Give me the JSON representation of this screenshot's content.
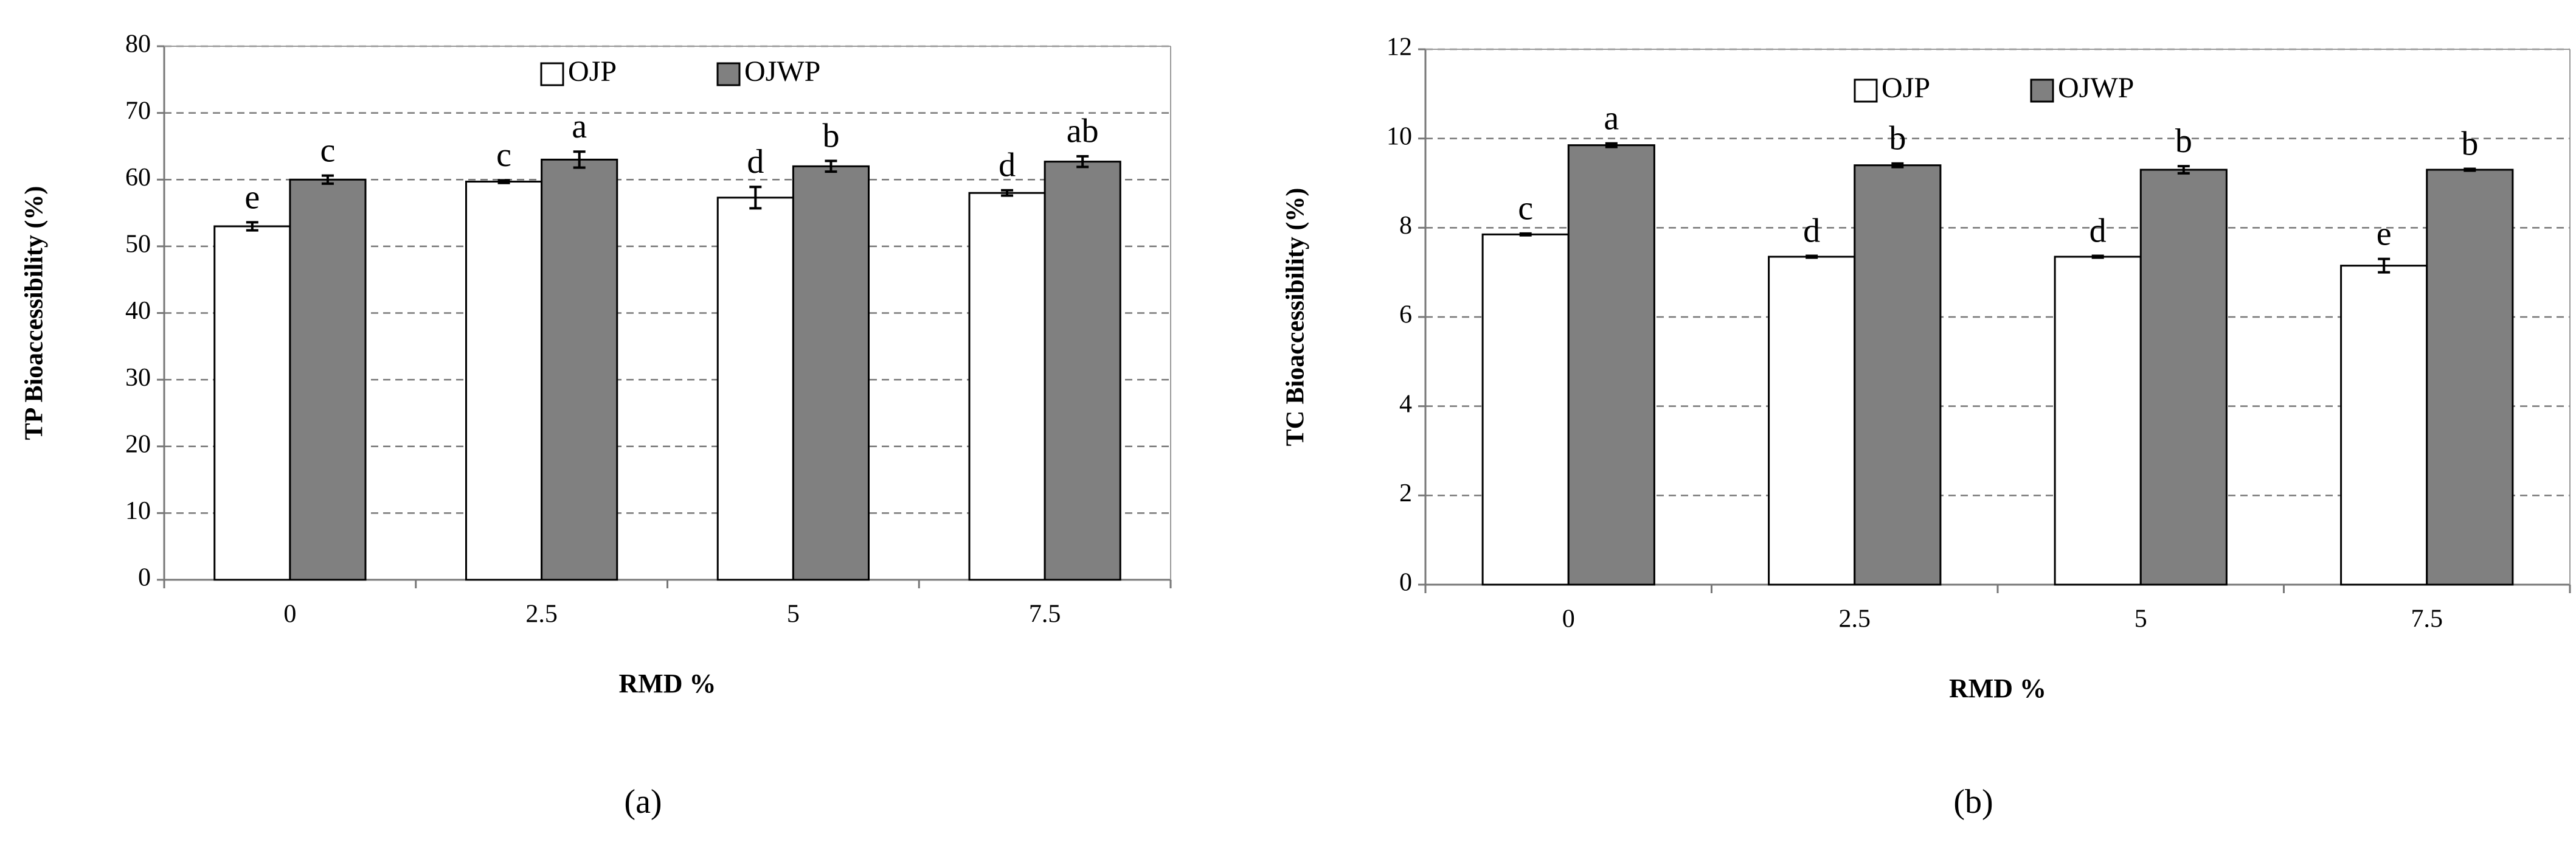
{
  "chart_data": [
    {
      "type": "bar",
      "caption": "(a)",
      "x_label": "RMD %",
      "y_label": "TP Bioaccessibility (%)",
      "categories": [
        "0",
        "2.5",
        "5",
        "7.5"
      ],
      "series": [
        {
          "name": "OJP",
          "color": "#ffffff",
          "values": [
            53,
            59.7,
            57.3,
            58
          ],
          "errors": [
            0.6,
            0.2,
            1.6,
            0.4
          ],
          "labels": [
            "e",
            "c",
            "d",
            "d"
          ]
        },
        {
          "name": "OJWP",
          "color": "#808080",
          "values": [
            60,
            63,
            62,
            62.7
          ],
          "errors": [
            0.6,
            1.2,
            0.8,
            0.8
          ],
          "labels": [
            "c",
            "a",
            "b",
            "ab"
          ]
        }
      ],
      "ylim": [
        0,
        80
      ],
      "yticks": [
        0,
        10,
        20,
        30,
        40,
        50,
        60,
        70,
        80
      ],
      "grid": true,
      "legend": "top"
    },
    {
      "type": "bar",
      "caption": "(b)",
      "x_label": "RMD %",
      "y_label": "TC Bioaccessibility  (%)",
      "categories": [
        "0",
        "2.5",
        "5",
        "7.5"
      ],
      "series": [
        {
          "name": "OJP",
          "color": "#ffffff",
          "values": [
            7.85,
            7.35,
            7.35,
            7.15
          ],
          "errors": [
            0.02,
            0.02,
            0.02,
            0.15
          ],
          "labels": [
            "c",
            "d",
            "d",
            "e"
          ]
        },
        {
          "name": "OJWP",
          "color": "#808080",
          "values": [
            9.85,
            9.4,
            9.3,
            9.3
          ],
          "errors": [
            0.04,
            0.04,
            0.08,
            0.02
          ],
          "labels": [
            "a",
            "b",
            "b",
            "b"
          ]
        }
      ],
      "ylim": [
        0,
        12
      ],
      "yticks": [
        0,
        2,
        4,
        6,
        8,
        10,
        12
      ],
      "grid": true,
      "legend": "top"
    }
  ]
}
